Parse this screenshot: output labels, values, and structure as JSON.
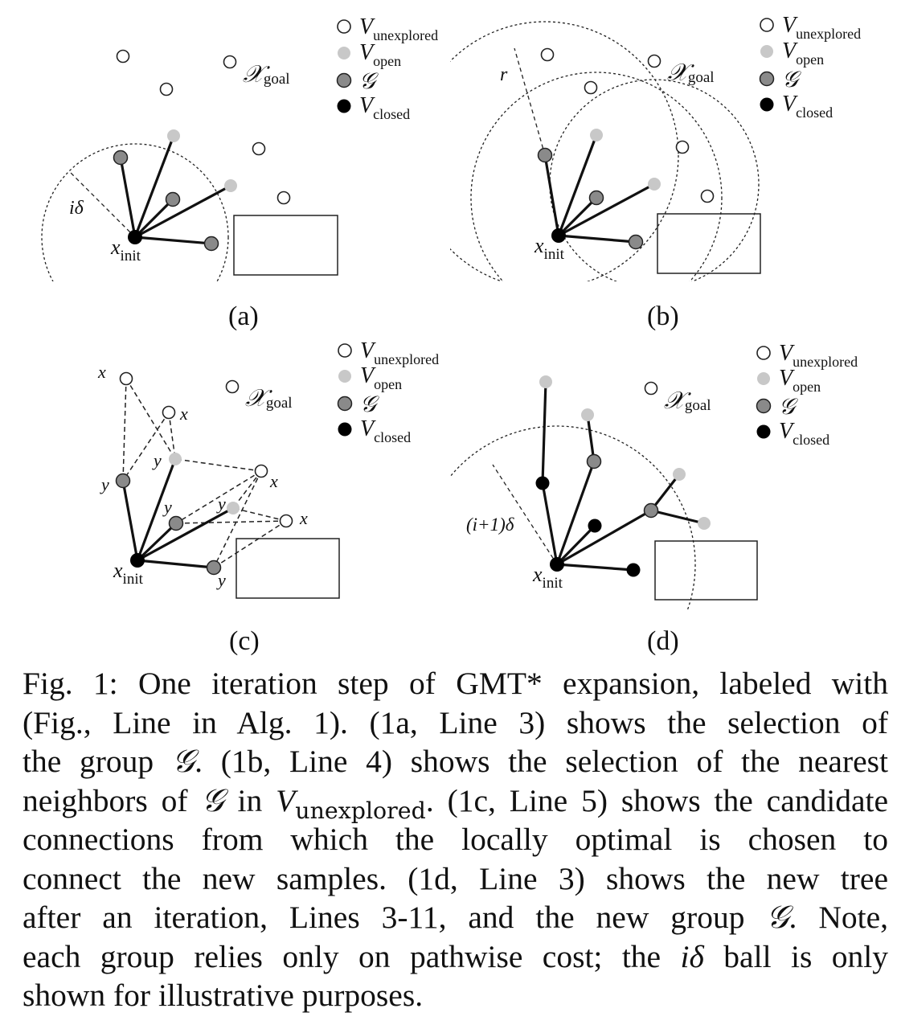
{
  "legend": {
    "unexplored_V": "V",
    "unexplored_sub": "unexplored",
    "open_V": "V",
    "open_sub": "open",
    "group": "𝒢",
    "closed_V": "V",
    "closed_sub": "closed"
  },
  "labels": {
    "goal_X": "𝒳",
    "goal_sub": "goal",
    "init_x": "x",
    "init_sub": "init",
    "radius_a": "iδ",
    "radius_b": "r",
    "radius_d": "(i+1)δ",
    "x": "x",
    "y": "y"
  },
  "panels": {
    "a": "(a)",
    "b": "(b)",
    "c": "(c)",
    "d": "(d)"
  },
  "caption": {
    "l1": "Fig. 1: One iteration step of GMT* expansion, labeled with",
    "l2": "(Fig., Line in Alg. 1). (1a, Line 3) shows the selection of",
    "l3a": "the group ",
    "l3g": "𝒢",
    "l3b": ". (1b, Line 4) shows the selection of the nearest",
    "l4a": "neighbors of ",
    "l4g": "𝒢",
    "l4b": " in ",
    "l4v": "V",
    "l4sub": "unexplored",
    "l4c": ". (1c, Line 5) shows the candidate",
    "l5": "connections from which the locally optimal is chosen to",
    "l6": "connect the new samples. (1d, Line 3) shows the new tree",
    "l7a": "after an iteration, Lines 3-11, and the new group ",
    "l7g": "𝒢",
    "l7b": ". Note,",
    "l8a": "each group relies only on pathwise cost; the ",
    "l8id": "iδ",
    "l8b": " ball is only",
    "l9": "shown for illustrative purposes."
  }
}
